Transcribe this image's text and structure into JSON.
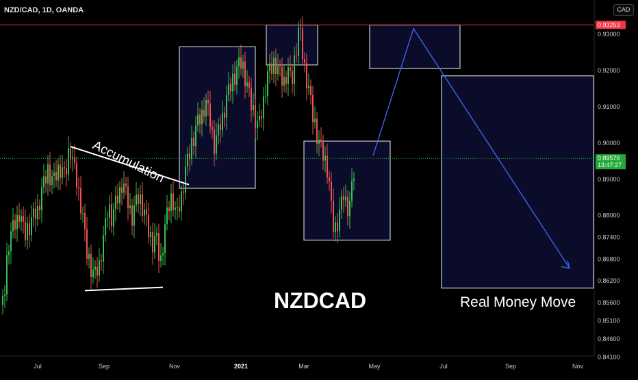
{
  "header": {
    "symbol_title": "NZD/CAD, 1D, OANDA",
    "currency_button": "CAD"
  },
  "price_axis": {
    "labels": [
      "0.93000",
      "0.92000",
      "0.91000",
      "0.90000",
      "0.89000",
      "0.88000",
      "0.87400",
      "0.86800",
      "0.86200",
      "0.85600",
      "0.85100",
      "0.84600",
      "0.84100"
    ],
    "resistance_tag": "0.93253",
    "current_price_tag": "0.89576",
    "countdown": "13:47:27"
  },
  "time_axis": {
    "labels": [
      "Jul",
      "Sep",
      "Nov",
      "2021",
      "Mar",
      "May",
      "Jul",
      "Sep",
      "Nov"
    ],
    "bold_label": "2021"
  },
  "annotations": {
    "accumulation": "Accumulation",
    "symbol_big": "NZDCAD",
    "forecast": "Real Money Move"
  },
  "colors": {
    "background": "#000000",
    "bull": "#26a69a",
    "bull_bright": "#22c55e",
    "bear": "#ef5350",
    "resistance": "#f23645",
    "current_price": "#22ab3b",
    "box_fill": "#0b0d2e",
    "box_stroke": "#b9bcc6",
    "forecast_arrow": "#3d63f5"
  },
  "chart_data": {
    "type": "candlestick",
    "instrument": "NZD/CAD",
    "timeframe": "1D",
    "source": "OANDA",
    "ylim": [
      0.839,
      0.936
    ],
    "resistance": 0.93253,
    "last_price": 0.89576,
    "path": [
      [
        0,
        0.852
      ],
      [
        6,
        0.857
      ],
      [
        12,
        0.872
      ],
      [
        20,
        0.877
      ],
      [
        28,
        0.881
      ],
      [
        36,
        0.874
      ],
      [
        45,
        0.878
      ],
      [
        55,
        0.882
      ],
      [
        62,
        0.887
      ],
      [
        70,
        0.892
      ],
      [
        78,
        0.889
      ],
      [
        86,
        0.894
      ],
      [
        95,
        0.89
      ],
      [
        102,
        0.899
      ],
      [
        108,
        0.893
      ],
      [
        114,
        0.888
      ],
      [
        120,
        0.881
      ],
      [
        126,
        0.87
      ],
      [
        132,
        0.866
      ],
      [
        138,
        0.863
      ],
      [
        145,
        0.867
      ],
      [
        152,
        0.874
      ],
      [
        158,
        0.882
      ],
      [
        164,
        0.879
      ],
      [
        170,
        0.884
      ],
      [
        178,
        0.889
      ],
      [
        185,
        0.885
      ],
      [
        192,
        0.879
      ],
      [
        198,
        0.883
      ],
      [
        204,
        0.886
      ],
      [
        210,
        0.881
      ],
      [
        216,
        0.876
      ],
      [
        222,
        0.872
      ],
      [
        228,
        0.874
      ],
      [
        234,
        0.867
      ],
      [
        240,
        0.875
      ],
      [
        246,
        0.882
      ],
      [
        252,
        0.885
      ],
      [
        258,
        0.879
      ],
      [
        264,
        0.885
      ],
      [
        268,
        0.889
      ],
      [
        272,
        0.893
      ],
      [
        276,
        0.896
      ],
      [
        282,
        0.901
      ],
      [
        288,
        0.905
      ],
      [
        294,
        0.908
      ],
      [
        300,
        0.911
      ],
      [
        306,
        0.907
      ],
      [
        312,
        0.899
      ],
      [
        318,
        0.902
      ],
      [
        324,
        0.907
      ],
      [
        330,
        0.911
      ],
      [
        336,
        0.915
      ],
      [
        342,
        0.918
      ],
      [
        348,
        0.921
      ],
      [
        354,
        0.923
      ],
      [
        360,
        0.916
      ],
      [
        366,
        0.911
      ],
      [
        372,
        0.907
      ],
      [
        378,
        0.904
      ],
      [
        384,
        0.911
      ],
      [
        390,
        0.918
      ],
      [
        396,
        0.92
      ],
      [
        402,
        0.922
      ],
      [
        408,
        0.919
      ],
      [
        414,
        0.917
      ],
      [
        420,
        0.92
      ],
      [
        426,
        0.916
      ],
      [
        432,
        0.925
      ],
      [
        437,
        0.932
      ],
      [
        442,
        0.925
      ],
      [
        447,
        0.919
      ],
      [
        452,
        0.913
      ],
      [
        457,
        0.907
      ],
      [
        462,
        0.903
      ],
      [
        467,
        0.899
      ],
      [
        472,
        0.897
      ],
      [
        477,
        0.895
      ],
      [
        482,
        0.886
      ],
      [
        486,
        0.877
      ],
      [
        490,
        0.876
      ],
      [
        494,
        0.879
      ],
      [
        498,
        0.882
      ],
      [
        502,
        0.886
      ],
      [
        506,
        0.884
      ],
      [
        510,
        0.881
      ],
      [
        514,
        0.887
      ],
      [
        518,
        0.893
      ],
      [
        520,
        0.896
      ]
    ],
    "wave_pattern": [
      0.0032,
      -0.0016,
      0.0026,
      -0.0031,
      0.0014,
      0.0029,
      -0.0023,
      0.0008,
      -0.0034,
      0.0019
    ]
  },
  "layout_data": {
    "price_ticks": [
      0.93,
      0.92,
      0.91,
      0.9,
      0.89,
      0.88,
      0.874,
      0.868,
      0.862,
      0.856,
      0.851,
      0.846,
      0.841
    ],
    "accumulation_upper": [
      [
        0.899,
        0.8885
      ]
    ],
    "accumulation_lower": [
      [
        0.8593,
        0.8602
      ]
    ],
    "boxes": [
      {
        "name": "breakout-box",
        "price_top": 0.9265,
        "price_bottom": 0.8875
      },
      {
        "name": "top-box",
        "price_top": 0.9325,
        "price_bottom": 0.9215
      },
      {
        "name": "pullback-box",
        "price_top": 0.9005,
        "price_bottom": 0.8732
      },
      {
        "name": "target-box",
        "price_top": 0.9325,
        "price_bottom": 0.9205
      },
      {
        "name": "forecast-box",
        "price_top": 0.9185,
        "price_bottom": 0.86
      }
    ],
    "forecast_path": [
      0.8965,
      0.9315,
      0.8655
    ]
  }
}
